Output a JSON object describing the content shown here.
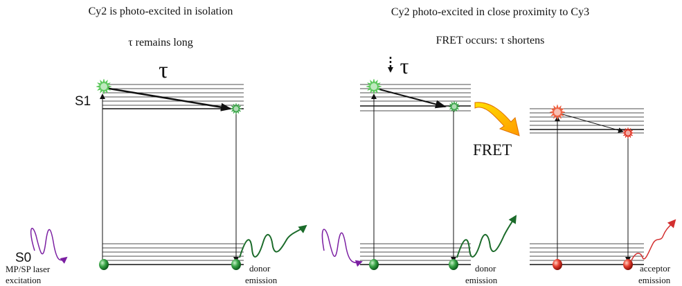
{
  "left_panel": {
    "title": "Cy2 is photo-excited in isolation",
    "subtitle": "τ remains long",
    "tau_label": "τ",
    "levels": {
      "s1": "S1",
      "s0": "S0"
    },
    "excitation_label": [
      "MP/SP laser",
      "excitation"
    ],
    "emission_label": [
      "donor",
      "emission"
    ]
  },
  "right_panel": {
    "title": "Cy2 photo-excited in close proximity to Cy3",
    "subtitle": "FRET occurs: τ shortens",
    "tau_label": "τ",
    "transfer_label": "FRET",
    "donor_emission_label": [
      "donor",
      "emission"
    ],
    "acceptor_emission_label": [
      "acceptor",
      "emission"
    ]
  }
}
